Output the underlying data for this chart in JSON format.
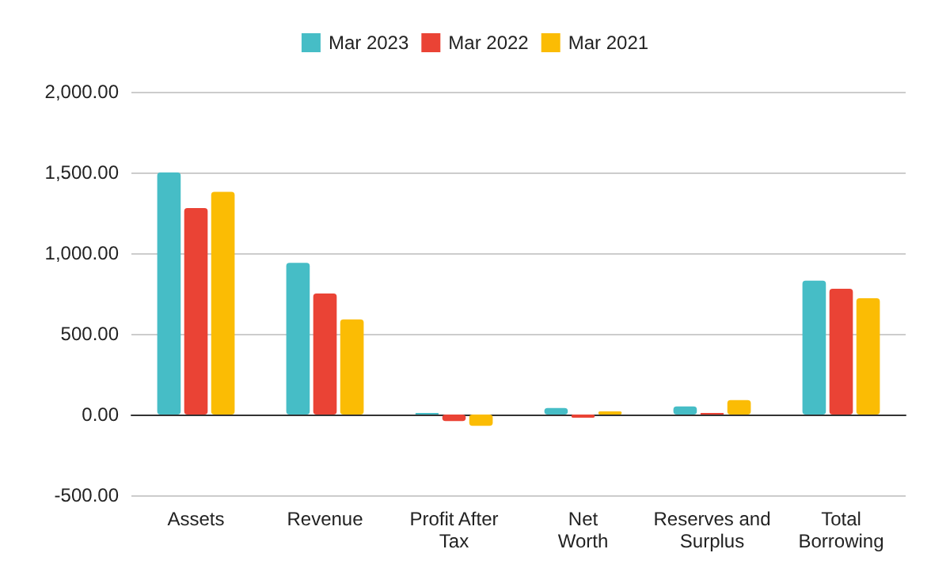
{
  "chart_data": {
    "type": "bar",
    "categories": [
      "Assets",
      "Revenue",
      "Profit After Tax",
      "Net Worth",
      "Reserves and Surplus",
      "Total Borrowing"
    ],
    "series": [
      {
        "name": "Mar 2023",
        "color": "#46bdc6",
        "values": [
          1500,
          940,
          10,
          40,
          50,
          830
        ]
      },
      {
        "name": "Mar 2022",
        "color": "#ea4335",
        "values": [
          1280,
          750,
          -40,
          -20,
          10,
          780
        ]
      },
      {
        "name": "Mar 2021",
        "color": "#fbbc04",
        "values": [
          1380,
          590,
          -70,
          20,
          90,
          720
        ]
      }
    ],
    "ylim": [
      -500,
      2000
    ],
    "yticks": [
      {
        "value": -500,
        "label": "-500.00"
      },
      {
        "value": 0,
        "label": "0.00"
      },
      {
        "value": 500,
        "label": "500.00"
      },
      {
        "value": 1000,
        "label": "1,000.00"
      },
      {
        "value": 1500,
        "label": "1,500.00"
      },
      {
        "value": 2000,
        "label": "2,000.00"
      }
    ],
    "grid": "y",
    "legend": "top"
  }
}
